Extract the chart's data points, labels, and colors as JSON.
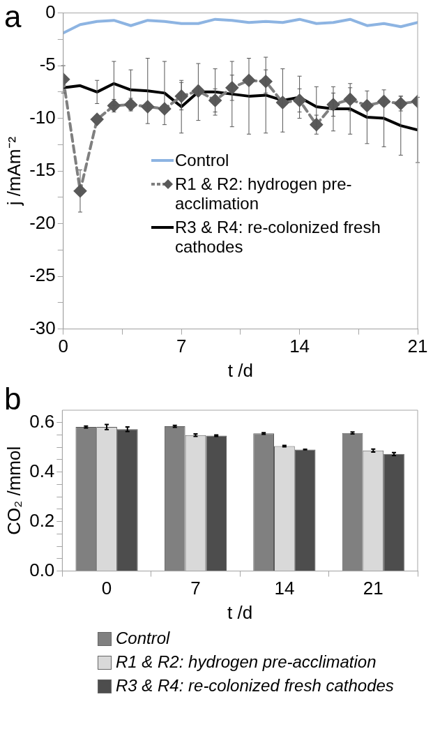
{
  "chart_data": [
    {
      "type": "line",
      "title": "a",
      "xlabel": "t /d",
      "ylabel": "j /mAm⁻²",
      "x": [
        0,
        1,
        2,
        3,
        4,
        5,
        6,
        7,
        8,
        9,
        10,
        11,
        12,
        13,
        14,
        15,
        16,
        17,
        18,
        19,
        20,
        21
      ],
      "xlim": [
        0,
        21
      ],
      "xticks": [
        0,
        {
          "value": 3.5,
          "label": null
        },
        7,
        {
          "value": 10.5,
          "label": null
        },
        14,
        {
          "value": 17.5,
          "label": null
        },
        21
      ],
      "ylim": [
        -30,
        0
      ],
      "yticks": [
        -30,
        {
          "value": -27.5,
          "label": null
        },
        -25,
        {
          "value": -22.5,
          "label": null
        },
        -20,
        {
          "value": -17.5,
          "label": null
        },
        -15,
        {
          "value": -12.5,
          "label": null
        },
        -10,
        {
          "value": -7.5,
          "label": null
        },
        -5,
        {
          "value": -2.5,
          "label": null
        },
        0
      ],
      "grid": false,
      "legend": "bottom",
      "series": [
        {
          "name": "Control",
          "color": "#8db4e2",
          "marker": "none",
          "line_style": "solid",
          "values": [
            -1.9,
            -1.1,
            -0.8,
            -0.7,
            -1.2,
            -0.7,
            -0.8,
            -1.0,
            -1.0,
            -0.6,
            -0.7,
            -0.9,
            -0.8,
            -0.9,
            -0.6,
            -1.0,
            -0.9,
            -0.6,
            -1.2,
            -1.0,
            -1.3,
            -0.9
          ]
        },
        {
          "name": "R1 & R2: hydrogen pre-acclimation",
          "color": "#7f7f7f",
          "marker": "diamond",
          "line_style": "dashed",
          "values": [
            -6.3,
            -16.9,
            -10.1,
            -8.8,
            -8.7,
            -8.9,
            -9.1,
            -7.9,
            -7.4,
            -8.3,
            -7.1,
            -6.4,
            -6.5,
            -8.5,
            -8.3,
            -10.6,
            -8.7,
            -8.2,
            -8.8,
            -8.4,
            -8.6,
            -8.4
          ],
          "errors": [
            1.3,
            2.0,
            null,
            0.6,
            0.6,
            null,
            null,
            1.3,
            null,
            1.1,
            1.2,
            null,
            1.1,
            null,
            1.1,
            0.9,
            1.1,
            1.1,
            null,
            null,
            0.7,
            null
          ]
        },
        {
          "name": "R3 & R4: re-colonized fresh cathodes",
          "color": "#000000",
          "marker": "none",
          "line_style": "solid",
          "values": [
            -7.1,
            -6.9,
            -7.5,
            -6.7,
            -7.3,
            -7.4,
            -7.6,
            -8.9,
            -7.5,
            -7.5,
            -7.7,
            -7.9,
            -7.8,
            -8.3,
            -8.0,
            -8.9,
            -9.1,
            -9.1,
            -9.9,
            -10.0,
            -10.7,
            -11.1
          ],
          "errors": [
            null,
            null,
            1.1,
            2.1,
            1.9,
            3.1,
            3.0,
            2.5,
            2.7,
            2.2,
            3.1,
            3.6,
            3.6,
            3.0,
            2.0,
            1.9,
            2.1,
            2.4,
            2.5,
            2.7,
            2.8,
            3.1
          ]
        }
      ]
    },
    {
      "type": "bar",
      "title": "b",
      "xlabel": "t /d",
      "ylabel": "CO₂ /mmol",
      "categories": [
        "0",
        "7",
        "14",
        "21"
      ],
      "ylim": [
        0,
        0.65
      ],
      "yticks": [
        {
          "value": 0,
          "label": "0.0"
        },
        {
          "value": 0.05,
          "label": null
        },
        {
          "value": 0.1,
          "label": null
        },
        {
          "value": 0.15,
          "label": null
        },
        0.2,
        {
          "value": 0.25,
          "label": null
        },
        {
          "value": 0.3,
          "label": null
        },
        {
          "value": 0.35,
          "label": null
        },
        0.4,
        {
          "value": 0.45,
          "label": null
        },
        {
          "value": 0.5,
          "label": null
        },
        {
          "value": 0.55,
          "label": null
        },
        0.6
      ],
      "grid": false,
      "legend": "bottom",
      "series": [
        {
          "name": "Control",
          "color": "#808080",
          "values": [
            0.582,
            0.585,
            0.556,
            0.558
          ],
          "errors": [
            0.004,
            0.004,
            0.003,
            0.004
          ]
        },
        {
          "name": "R1 & R2: hydrogen pre-acclimation",
          "color": "#d9d9d9",
          "values": [
            0.582,
            0.549,
            0.505,
            0.487
          ],
          "errors": [
            0.01,
            0.005,
            0.003,
            0.006
          ]
        },
        {
          "name": "R3 & R4: re-colonized fresh cathodes",
          "color": "#4d4d4d",
          "values": [
            0.573,
            0.547,
            0.491,
            0.473
          ],
          "errors": [
            0.009,
            0.003,
            0.001,
            0.006
          ]
        }
      ]
    }
  ]
}
